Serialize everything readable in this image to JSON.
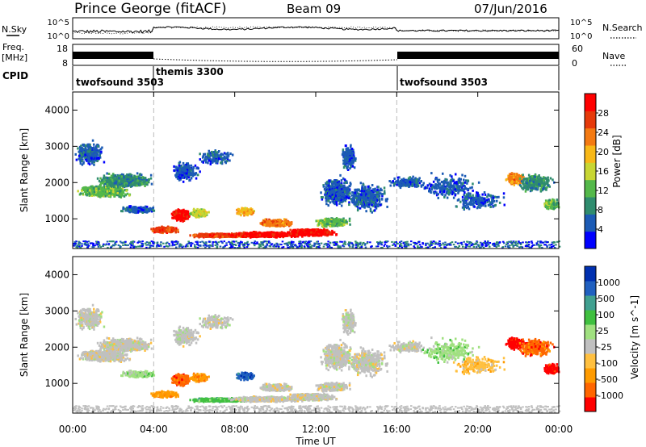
{
  "header": {
    "station": "Prince George (fitACF)",
    "beam": "Beam 09",
    "date": "07/Jun/2016"
  },
  "noise_panel": {
    "left_label": "N.Sky",
    "right_label": "N.Search",
    "left_ticks": [
      "10^5",
      "10^0"
    ],
    "right_ticks": [
      "10^5",
      "10^0"
    ]
  },
  "freq_panel": {
    "left_label_1": "Freq.",
    "left_label_2": "[MHz]",
    "right_label": "Nave",
    "left_ticks": [
      "18",
      "8"
    ],
    "right_ticks": [
      "60",
      "0"
    ]
  },
  "cpid": {
    "label": "CPID",
    "segments": [
      {
        "name": "twofsound 3503",
        "start_h": 0,
        "end_h": 4
      },
      {
        "name": "themis 3300",
        "start_h": 4,
        "end_h": 16
      },
      {
        "name": "twofsound 3503",
        "start_h": 16,
        "end_h": 24
      }
    ]
  },
  "colors": {
    "power": [
      "#0000ff",
      "#1c5bb5",
      "#2f8c6e",
      "#54b84a",
      "#c8d633",
      "#f8b817",
      "#f47a12",
      "#e63a0a",
      "#ff0000"
    ],
    "velocity": [
      "#ff0000",
      "#ff6600",
      "#ff9b00",
      "#ffc040",
      "#c0c0c0",
      "#a0e080",
      "#40c040",
      "#40a090",
      "#2060c0",
      "#0030b0"
    ]
  },
  "chart_data": [
    {
      "type": "heatmap",
      "name": "power",
      "ylabel": "Slant Range [km]",
      "yticks": [
        1000,
        2000,
        3000,
        4000
      ],
      "ylim": [
        180,
        4500
      ],
      "xlim": [
        0,
        24
      ],
      "colorbar": {
        "label": "Power [dB]",
        "ticks": [
          "4",
          "8",
          "12",
          "16",
          "20",
          "24",
          "28"
        ],
        "range": [
          0,
          32
        ]
      }
    },
    {
      "type": "heatmap",
      "name": "velocity",
      "ylabel": "Slant Range [km]",
      "yticks": [
        1000,
        2000,
        3000,
        4000
      ],
      "ylim": [
        180,
        4500
      ],
      "xlim": [
        0,
        24
      ],
      "xticks": [
        "00:00",
        "04:00",
        "08:00",
        "12:00",
        "16:00",
        "20:00",
        "00:00"
      ],
      "xlabel": "Time UT",
      "colorbar": {
        "label": "Velocity [m s^-1]",
        "ticks": [
          "1000",
          "500",
          "100",
          "25",
          "-25",
          "-100",
          "-500",
          "-1000"
        ]
      }
    }
  ]
}
